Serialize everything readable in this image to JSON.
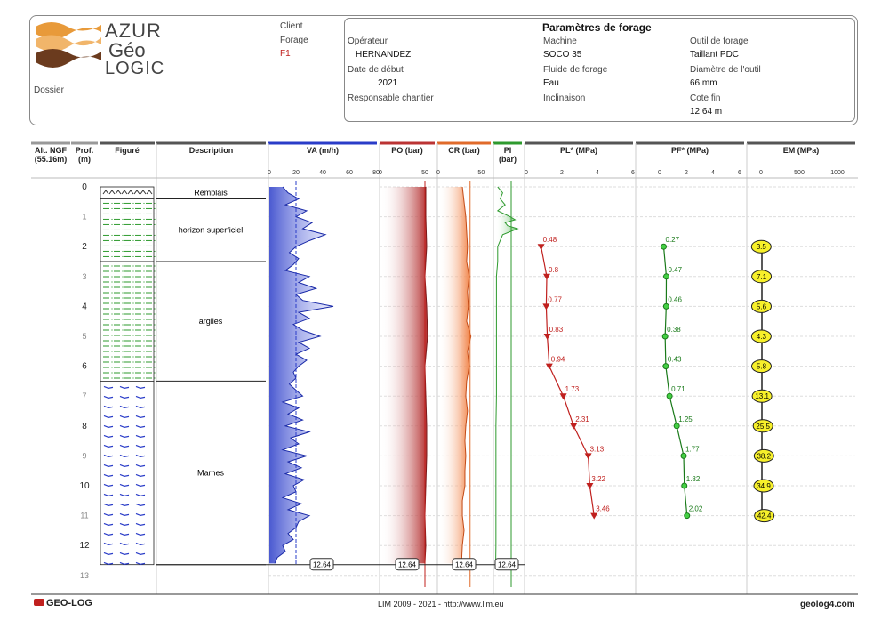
{
  "header": {
    "logo": {
      "line1": "AZUR",
      "line2": "Géo",
      "line3": "LOGIC"
    },
    "dossier_label": "Dossier",
    "client_label": "Client",
    "forage_label": "Forage",
    "forage_value": "F1",
    "params_title": "Paramètres de forage",
    "operateur_label": "Opérateur",
    "operateur_value": "HERNANDEZ",
    "date_label": "Date de début",
    "date_value": "2021",
    "responsable_label": "Responsable chantier",
    "machine_label": "Machine",
    "machine_value": "SOCO 35",
    "fluide_label": "Fluide de forage",
    "fluide_value": "Eau",
    "inclinaison_label": "Inclinaison",
    "outil_label": "Outil de forage",
    "outil_value": "Taillant PDC",
    "diametre_label": "Diamètre de l'outil",
    "diametre_value": "66 mm",
    "cote_label": "Cote fin",
    "cote_value": "12.64 m"
  },
  "columns": {
    "alt": "Alt. NGF",
    "alt2": "(55.16m)",
    "prof": "Prof.",
    "prof2": "(m)",
    "figure": "Figuré",
    "description": "Description",
    "va": "VA (m/h)",
    "po": "PO (bar)",
    "cr": "CR (bar)",
    "pi": "PI",
    "pi2": "(bar)",
    "pl": "PL* (MPa)",
    "pf": "PF* (MPa)",
    "em": "EM (MPa)"
  },
  "footer": {
    "brand": "GEO-LOG",
    "center": "LIM 2009 - 2021 - http://www.lim.eu",
    "right": "geolog4.com"
  },
  "chart_data": {
    "type": "line",
    "depth_axis": {
      "label": "Prof. (m)",
      "range": [
        0,
        13.5
      ],
      "ticks": [
        0,
        1,
        2,
        3,
        4,
        5,
        6,
        7,
        8,
        9,
        10,
        11,
        12,
        13
      ]
    },
    "end_depth": 12.64,
    "end_depth_label": "12.64",
    "lithology": [
      {
        "from": 0,
        "to": 0.4,
        "description": "Remblais",
        "pattern": "fill"
      },
      {
        "from": 0.4,
        "to": 2.5,
        "description": "horizon superficiel",
        "pattern": "silt"
      },
      {
        "from": 2.5,
        "to": 6.5,
        "description": "argiles",
        "pattern": "silt"
      },
      {
        "from": 6.5,
        "to": 12.64,
        "description": "Marnes",
        "pattern": "marl"
      }
    ],
    "va": {
      "xlim": [
        0,
        80
      ],
      "ticks": [
        0,
        20,
        40,
        60,
        80
      ],
      "ref_lines": [
        20,
        53
      ],
      "depth": [
        0,
        0.2,
        0.4,
        0.6,
        0.8,
        1,
        1.2,
        1.4,
        1.6,
        1.8,
        2,
        2.2,
        2.4,
        2.6,
        2.8,
        3,
        3.2,
        3.4,
        3.6,
        3.8,
        4,
        4.2,
        4.4,
        4.6,
        4.8,
        5,
        5.2,
        5.4,
        5.6,
        5.8,
        6,
        6.2,
        6.4,
        6.6,
        6.8,
        7,
        7.2,
        7.4,
        7.6,
        7.8,
        8,
        8.2,
        8.4,
        8.6,
        8.8,
        9,
        9.2,
        9.4,
        9.6,
        9.8,
        10,
        10.2,
        10.4,
        10.6,
        10.8,
        11,
        11.2,
        11.4,
        11.6,
        11.8,
        12,
        12.2,
        12.4,
        12.6
      ],
      "values": [
        10,
        14,
        22,
        12,
        28,
        20,
        32,
        25,
        42,
        30,
        20,
        15,
        22,
        18,
        12,
        30,
        22,
        35,
        20,
        25,
        48,
        22,
        30,
        18,
        25,
        38,
        22,
        30,
        20,
        28,
        22,
        18,
        20,
        15,
        20,
        25,
        10,
        22,
        14,
        25,
        12,
        30,
        16,
        22,
        10,
        28,
        14,
        24,
        12,
        26,
        18,
        20,
        10,
        24,
        14,
        30,
        22,
        20,
        14,
        18,
        10,
        12,
        6,
        4
      ]
    },
    "po": {
      "xlim": [
        0,
        60
      ],
      "ticks": [
        0,
        50
      ],
      "ref_line": 50,
      "depth": [
        0,
        1,
        2,
        3,
        4,
        5,
        6,
        7,
        8,
        9,
        10,
        11,
        12,
        12.6
      ],
      "values": [
        51,
        51,
        52,
        50,
        52,
        53,
        50,
        51,
        52,
        52,
        51,
        50,
        51,
        50
      ]
    },
    "cr": {
      "xlim": [
        0,
        60
      ],
      "ticks": [
        0,
        50
      ],
      "ref_line": 37,
      "depth": [
        0,
        0.5,
        1,
        1.5,
        2,
        2.5,
        3,
        3.5,
        4,
        4.5,
        5,
        5.5,
        6,
        6.5,
        7,
        7.5,
        8,
        8.5,
        9,
        9.5,
        10,
        10.5,
        11,
        11.5,
        12,
        12.6
      ],
      "values": [
        28,
        30,
        32,
        33,
        34,
        33,
        36,
        34,
        35,
        33,
        38,
        34,
        36,
        33,
        32,
        34,
        32,
        31,
        32,
        31,
        31,
        28,
        28,
        30,
        28,
        27
      ]
    },
    "pi": {
      "xlim": [
        0,
        10
      ],
      "ref_line": 0,
      "depth": [
        0,
        0.2,
        0.4,
        0.6,
        0.8,
        1,
        1.1,
        1.2,
        1.3,
        1.4,
        1.6,
        1.8,
        2,
        2.5,
        3,
        4,
        5,
        6,
        7,
        8,
        9,
        10,
        11,
        12,
        12.6
      ],
      "values": [
        1,
        3,
        2,
        4,
        1,
        6,
        8,
        4,
        5,
        9,
        3,
        2,
        1,
        1,
        0.5,
        0.5,
        0.5,
        0.5,
        0.5,
        0.3,
        0.3,
        0.3,
        0.3,
        0.3,
        0.2
      ]
    },
    "pl": {
      "xlim": [
        0,
        6
      ],
      "ticks": [
        0,
        2,
        4,
        6
      ],
      "depth": [
        2,
        3,
        4,
        5,
        6,
        7,
        8,
        9,
        10,
        11
      ],
      "values": [
        0.48,
        0.8,
        0.77,
        0.83,
        0.94,
        1.73,
        2.31,
        3.13,
        3.22,
        3.46
      ],
      "labels": [
        "0.48",
        "0.8",
        "0.77",
        "0.83",
        "0.94",
        "1.73",
        "2.31",
        "3.13",
        "3.22",
        "3.46"
      ]
    },
    "pf": {
      "xlim": [
        0,
        6
      ],
      "ticks": [
        0,
        2,
        4,
        6
      ],
      "depth": [
        2,
        3,
        4,
        5,
        6,
        7,
        8,
        9,
        10,
        11
      ],
      "values": [
        0.27,
        0.47,
        0.46,
        0.38,
        0.43,
        0.71,
        1.25,
        1.77,
        1.82,
        2.02
      ],
      "labels": [
        "0.27",
        "0.47",
        "0.46",
        "0.38",
        "0.43",
        "0.71",
        "1.25",
        "1.77",
        "1.82",
        "2.02"
      ]
    },
    "em": {
      "xlim": [
        0,
        1000
      ],
      "ticks": [
        0,
        500,
        1000
      ],
      "depth": [
        2,
        3,
        4,
        5,
        6,
        7,
        8,
        9,
        10,
        11
      ],
      "values": [
        3.5,
        7.1,
        5.6,
        4.3,
        5.8,
        13.1,
        25.5,
        38.2,
        34.9,
        42.4
      ],
      "labels": [
        "3.5",
        "7.1",
        "5.6",
        "4.3",
        "5.8",
        "13.1",
        "25.5",
        "38.2",
        "34.9",
        "42.4"
      ]
    }
  }
}
